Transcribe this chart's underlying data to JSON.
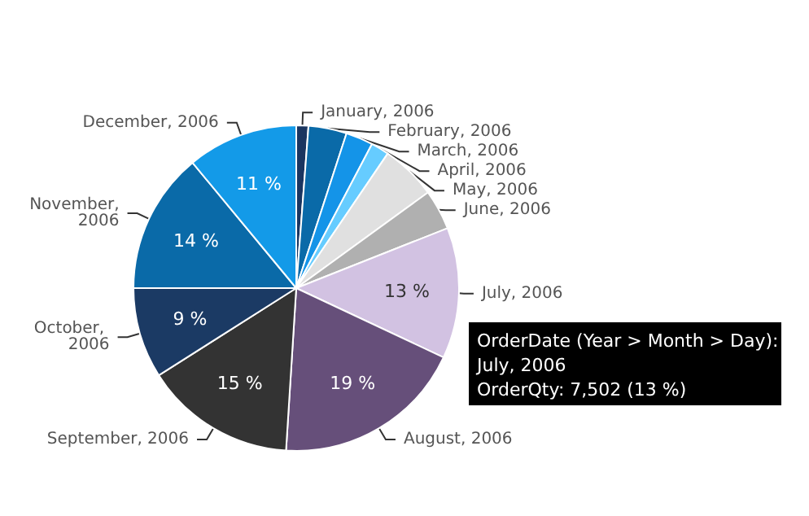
{
  "chart_data": {
    "type": "pie",
    "categories": [
      "January, 2006",
      "February, 2006",
      "March, 2006",
      "April, 2006",
      "May, 2006",
      "June, 2006",
      "July, 2006",
      "August, 2006",
      "September, 2006",
      "October, 2006",
      "November, 2006",
      "December, 2006"
    ],
    "values": [
      1.2,
      3.8,
      2.7,
      1.8,
      5.5,
      4,
      13,
      19,
      15,
      9,
      14,
      11
    ],
    "colors": [
      "#1a3560",
      "#0a6aa8",
      "#1494e8",
      "#66ccff",
      "#e0e0e0",
      "#b0b0b0",
      "#d2c2e2",
      "#664f7a",
      "#333333",
      "#1b3a64",
      "#0a6aa8",
      "#139ae8"
    ],
    "value_labels": [
      null,
      null,
      null,
      null,
      null,
      null,
      "13 %",
      "19 %",
      "15 %",
      "9 %",
      "14 %",
      "11 %"
    ],
    "legend": false,
    "annotations": [
      "OrderDate (Year > Month > Day):\nJuly, 2006\nOrderQty: 7,502 (13 %)"
    ]
  }
}
